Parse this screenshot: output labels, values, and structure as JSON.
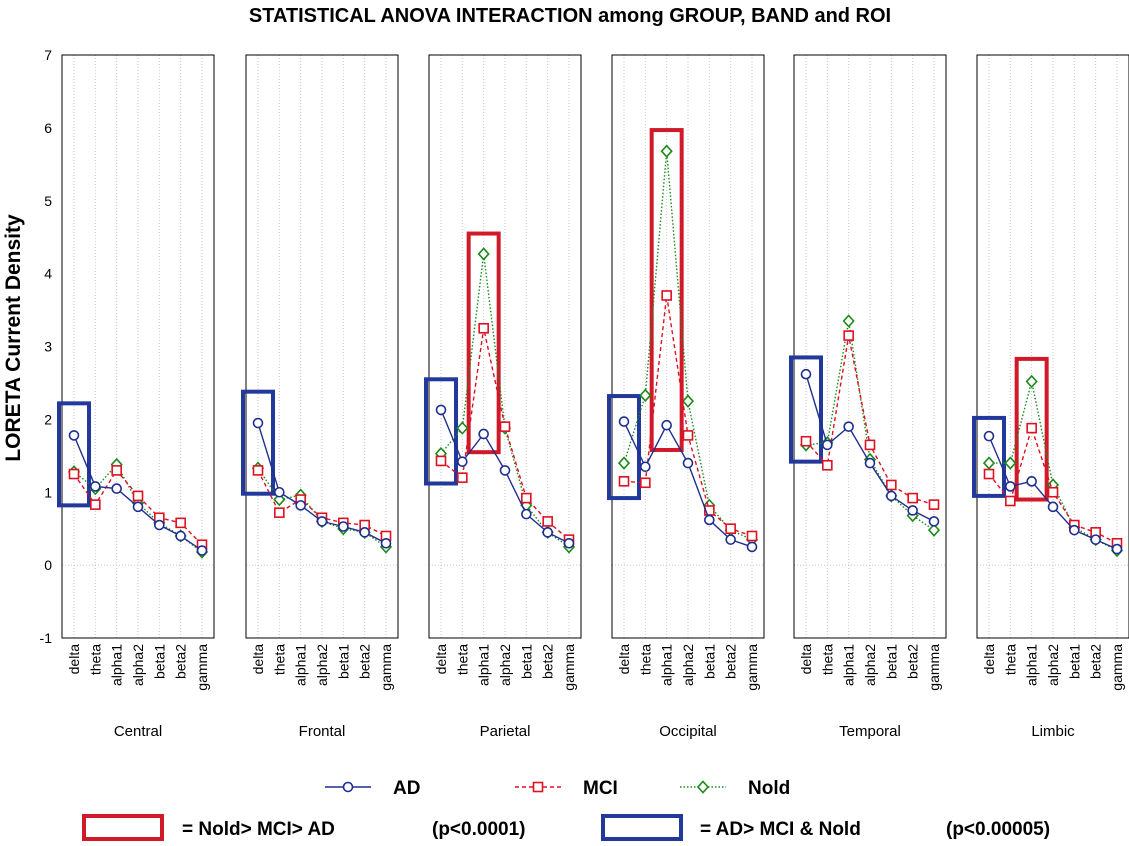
{
  "chart_data": {
    "type": "line",
    "title": "STATISTICAL ANOVA INTERACTION among GROUP, BAND and ROI",
    "ylabel": "LORETA Current Density",
    "ylim": [
      -1,
      7
    ],
    "yticks": [
      -1,
      0,
      1,
      2,
      3,
      4,
      5,
      6,
      7
    ],
    "grid": true,
    "bands": [
      "delta",
      "theta",
      "alpha1",
      "alpha2",
      "beta1",
      "beta2",
      "gamma"
    ],
    "panels": [
      {
        "label": "Central",
        "series": {
          "AD": [
            1.78,
            1.08,
            1.05,
            0.8,
            0.55,
            0.4,
            0.2
          ],
          "MCI": [
            1.25,
            0.83,
            1.3,
            0.95,
            0.65,
            0.58,
            0.28
          ],
          "Nold": [
            1.28,
            1.05,
            1.38,
            0.85,
            0.58,
            0.4,
            0.18
          ]
        }
      },
      {
        "label": "Frontal",
        "series": {
          "AD": [
            1.95,
            1.0,
            0.82,
            0.6,
            0.53,
            0.45,
            0.3
          ],
          "MCI": [
            1.3,
            0.72,
            0.9,
            0.65,
            0.58,
            0.55,
            0.4
          ],
          "Nold": [
            1.33,
            0.9,
            0.96,
            0.6,
            0.5,
            0.45,
            0.25
          ]
        }
      },
      {
        "label": "Parietal",
        "series": {
          "AD": [
            2.13,
            1.42,
            1.8,
            1.3,
            0.7,
            0.45,
            0.3
          ],
          "MCI": [
            1.43,
            1.2,
            3.25,
            1.9,
            0.92,
            0.6,
            0.35
          ],
          "Nold": [
            1.53,
            1.88,
            4.27,
            1.88,
            0.82,
            0.45,
            0.25
          ]
        }
      },
      {
        "label": "Occipital",
        "series": {
          "AD": [
            1.97,
            1.35,
            1.92,
            1.4,
            0.62,
            0.35,
            0.25
          ],
          "MCI": [
            1.15,
            1.13,
            3.7,
            1.78,
            0.75,
            0.5,
            0.4
          ],
          "Nold": [
            1.4,
            2.33,
            5.68,
            2.25,
            0.82,
            0.48,
            0.35
          ]
        }
      },
      {
        "label": "Temporal",
        "series": {
          "AD": [
            2.62,
            1.65,
            1.9,
            1.4,
            0.95,
            0.75,
            0.6
          ],
          "MCI": [
            1.7,
            1.37,
            3.15,
            1.65,
            1.1,
            0.92,
            0.83
          ],
          "Nold": [
            1.65,
            1.68,
            3.35,
            1.45,
            0.95,
            0.68,
            0.48
          ]
        }
      },
      {
        "label": "Limbic",
        "series": {
          "AD": [
            1.77,
            1.08,
            1.15,
            0.8,
            0.48,
            0.35,
            0.22
          ],
          "MCI": [
            1.25,
            0.88,
            1.88,
            1.0,
            0.55,
            0.45,
            0.3
          ],
          "Nold": [
            1.4,
            1.4,
            2.52,
            1.1,
            0.52,
            0.35,
            0.2
          ]
        }
      }
    ],
    "series_styles": {
      "AD": {
        "color": "#1f2f8f",
        "marker": "circle",
        "line": "solid"
      },
      "MCI": {
        "color": "#dd1122",
        "marker": "square",
        "line": "dashed"
      },
      "Nold": {
        "color": "#1a8a1a",
        "marker": "diamond",
        "line": "dotted"
      }
    },
    "highlights": [
      {
        "panel": "Central",
        "band": "delta",
        "type": "blue",
        "range": [
          0.82,
          2.22
        ]
      },
      {
        "panel": "Frontal",
        "band": "delta",
        "type": "blue",
        "range": [
          0.98,
          2.38
        ]
      },
      {
        "panel": "Parietal",
        "band": "delta",
        "type": "blue",
        "range": [
          1.12,
          2.55
        ]
      },
      {
        "panel": "Parietal",
        "band": "alpha1",
        "type": "red",
        "range": [
          1.55,
          4.55
        ]
      },
      {
        "panel": "Occipital",
        "band": "delta",
        "type": "blue",
        "range": [
          0.92,
          2.32
        ]
      },
      {
        "panel": "Occipital",
        "band": "alpha1",
        "type": "red",
        "range": [
          1.58,
          5.97
        ]
      },
      {
        "panel": "Temporal",
        "band": "delta",
        "type": "blue",
        "range": [
          1.42,
          2.85
        ]
      },
      {
        "panel": "Limbic",
        "band": "delta",
        "type": "blue",
        "range": [
          0.95,
          2.02
        ]
      },
      {
        "panel": "Limbic",
        "band": "alpha1",
        "type": "red",
        "range": [
          0.9,
          2.83
        ]
      }
    ],
    "highlight_colors": {
      "red": "#d01a2a",
      "blue": "#22389a"
    },
    "legend": {
      "series": [
        "AD",
        "MCI",
        "Nold"
      ],
      "red_box_text": "= Nold> MCI> AD",
      "red_box_p": "(p<0.0001)",
      "blue_box_text": "= AD> MCI & Nold",
      "blue_box_p": "(p<0.00005)"
    }
  }
}
